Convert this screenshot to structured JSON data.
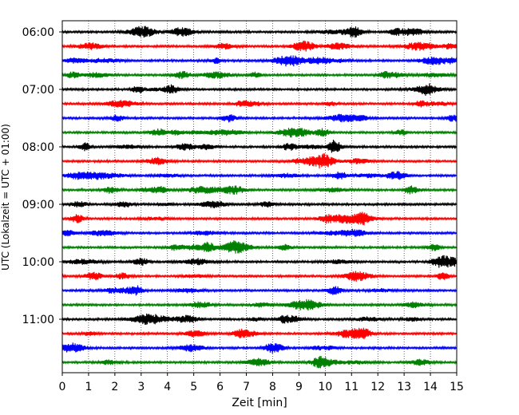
{
  "chart_data": {
    "type": "line",
    "title": "",
    "xlabel": "Zeit  [min]",
    "ylabel": "UTC (Lokalzeit = UTC + 01:00)",
    "xlim": [
      0,
      15
    ],
    "x_ticks": [
      "0",
      "1",
      "2",
      "3",
      "4",
      "5",
      "6",
      "7",
      "8",
      "9",
      "10",
      "11",
      "12",
      "13",
      "14",
      "15"
    ],
    "y_ticks": [
      "06:00",
      "07:00",
      "08:00",
      "09:00",
      "10:00",
      "11:00"
    ],
    "grid": "vertical dotted lines at each minute",
    "legend": "none",
    "trace_interval_minutes": 15,
    "start_time": "06:00",
    "trace_count": 24,
    "trace_colors": [
      "#000000",
      "#ff0000",
      "#0000ff",
      "#008000"
    ],
    "series_description": "Seismogram helicorder: one 15-minute trace per row, colors cycle black, red, blue, green"
  }
}
